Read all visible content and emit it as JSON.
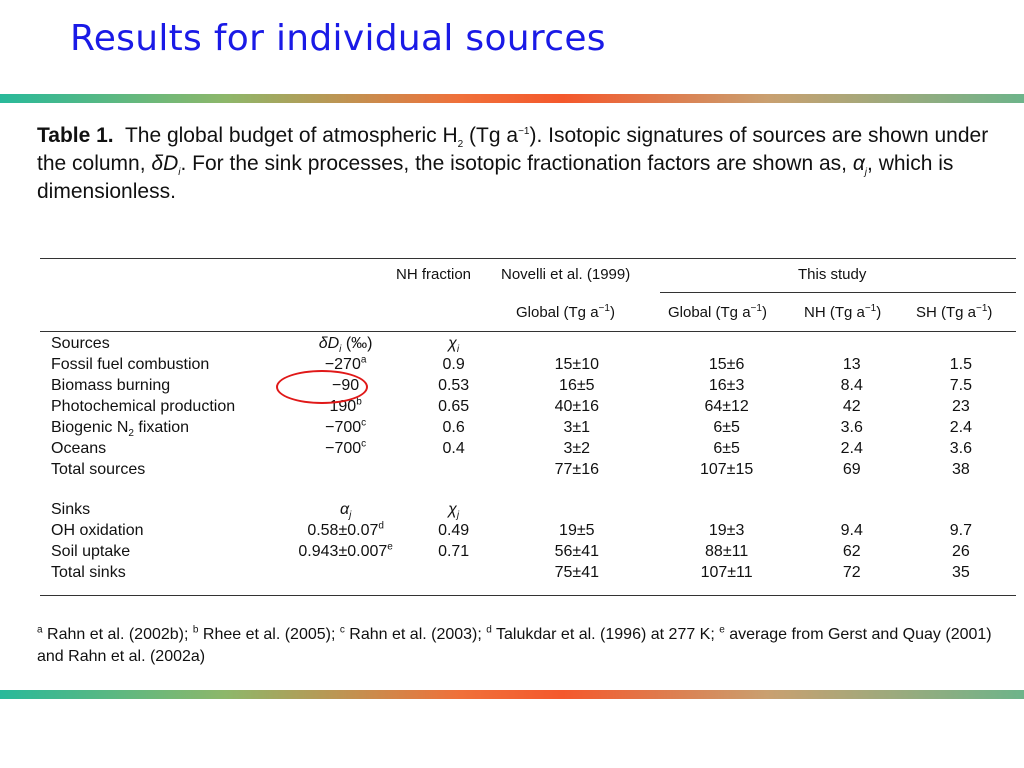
{
  "slide": {
    "title": "Results for individual sources"
  },
  "caption": {
    "label": "Table 1.",
    "t1": "The global budget of atmospheric H",
    "sub2": "2",
    "t2": " (Tg a",
    "supneg": "−1",
    "t3": ").  Isotopic signatures of sources are shown under the column, ",
    "dsym": "δD",
    "disub": "i",
    "t4": ".  For the sink processes, the isotopic fractionation factors are shown as, ",
    "alpha": "α",
    "jsub": "j",
    "t5": ", which is dimensionless."
  },
  "headers": {
    "nh_fraction": "NH fraction",
    "novelli": "Novelli et al. (1999)",
    "this_study": "This study",
    "nov_global": "Global (Tg a",
    "global": "Global (Tg a",
    "nh": "NH (Tg a",
    "sh": "SH (Tg a",
    "neg1": "−1",
    "close": ")"
  },
  "sources": {
    "label": "Sources",
    "sig_header": "δD",
    "sig_sub": "i",
    "sig_unit": " (‰)",
    "chi": "χ",
    "chi_sub": "i",
    "rows": [
      {
        "name": "Fossil fuel combustion",
        "sig": "−270",
        "sup": "a",
        "nh": "0.9",
        "nov": "15±10",
        "glob": "15±6",
        "snh": "13",
        "ssh": "1.5"
      },
      {
        "name": "Biomass burning",
        "sig": "−90",
        "sup": "",
        "nh": "0.53",
        "nov": "16±5",
        "glob": "16±3",
        "snh": "8.4",
        "ssh": "7.5"
      },
      {
        "name": "Photochemical production",
        "sig": "190",
        "sup": "b",
        "nh": "0.65",
        "nov": "40±16",
        "glob": "64±12",
        "snh": "42",
        "ssh": "23"
      },
      {
        "name_pre": "Biogenic N",
        "name_sub": "2",
        "name_post": " fixation",
        "sig": "−700",
        "sup": "c",
        "nh": "0.6",
        "nov": "3±1",
        "glob": "6±5",
        "snh": "3.6",
        "ssh": "2.4"
      },
      {
        "name": "Oceans",
        "sig": "−700",
        "sup": "c",
        "nh": "0.4",
        "nov": "3±2",
        "glob": "6±5",
        "snh": "2.4",
        "ssh": "3.6"
      },
      {
        "name": "Total sources",
        "sig": "",
        "sup": "",
        "nh": "",
        "nov": "77±16",
        "glob": "107±15",
        "snh": "69",
        "ssh": "38"
      }
    ]
  },
  "sinks": {
    "label": "Sinks",
    "alpha": "α",
    "alpha_sub": "j",
    "chi": "χ",
    "chi_sub": "j",
    "rows": [
      {
        "name": "OH oxidation",
        "sig": "0.58±0.07",
        "sup": "d",
        "nh": "0.49",
        "nov": "19±5",
        "glob": "19±3",
        "snh": "9.4",
        "ssh": "9.7"
      },
      {
        "name": "Soil uptake",
        "sig": "0.943±0.007",
        "sup": "e",
        "nh": "0.71",
        "nov": "56±41",
        "glob": "88±11",
        "snh": "62",
        "ssh": "26"
      },
      {
        "name": "Total sinks",
        "sig": "",
        "sup": "",
        "nh": "",
        "nov": "75±41",
        "glob": "107±11",
        "snh": "72",
        "ssh": "35"
      }
    ]
  },
  "footnote": {
    "a": "a",
    "a_text": " Rahn et al. (2002b); ",
    "b": "b",
    "b_text": " Rhee et al. (2005); ",
    "c": "c",
    "c_text": " Rahn et al. (2003); ",
    "d": "d",
    "d_text": " Talukdar et al. (1996) at 277 K; ",
    "e": "e",
    "e_text": " average from Gerst and Quay (2001) and Rahn et al. (2002a)"
  }
}
